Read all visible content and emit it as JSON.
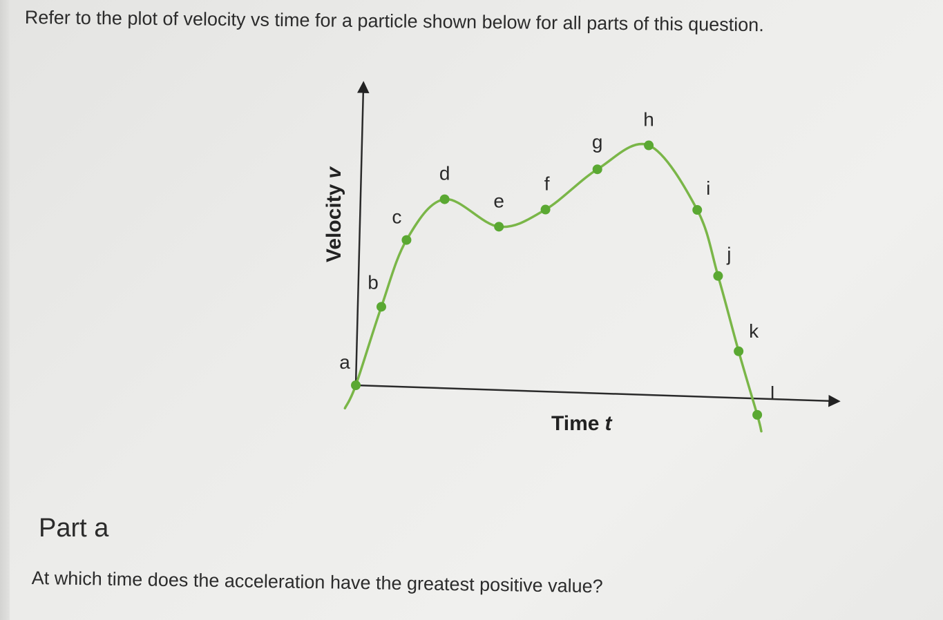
{
  "question": {
    "intro": "Refer to the plot of velocity vs time for a particle shown below for all parts of this question.",
    "part_title": "Part a",
    "prompt": "At which time does the acceleration have the greatest positive value?"
  },
  "chart_data": {
    "type": "line",
    "xlabel": "Time",
    "xlabel_var": "t",
    "ylabel": "Velocity",
    "ylabel_var": "v",
    "ticks": "none",
    "grid": false,
    "line_color": "#7ab648",
    "marker_color": "#5aa832",
    "x_range": [
      -0.4,
      10.4
    ],
    "y_range": [
      -0.8,
      6.9
    ],
    "points": [
      {
        "label": "a",
        "x": 0.0,
        "y": 0.0
      },
      {
        "label": "b",
        "x": 0.5,
        "y": 1.7
      },
      {
        "label": "c",
        "x": 1.0,
        "y": 3.15
      },
      {
        "label": "d",
        "x": 1.8,
        "y": 4.05
      },
      {
        "label": "e",
        "x": 3.0,
        "y": 3.5
      },
      {
        "label": "f",
        "x": 4.0,
        "y": 3.9
      },
      {
        "label": "g",
        "x": 5.1,
        "y": 4.8
      },
      {
        "label": "h",
        "x": 6.2,
        "y": 5.35
      },
      {
        "label": "i",
        "x": 7.3,
        "y": 4.0
      },
      {
        "label": "j",
        "x": 7.8,
        "y": 2.6
      },
      {
        "label": "k",
        "x": 8.3,
        "y": 1.0
      },
      {
        "label": "l",
        "x": 8.75,
        "y": -0.35
      }
    ]
  }
}
